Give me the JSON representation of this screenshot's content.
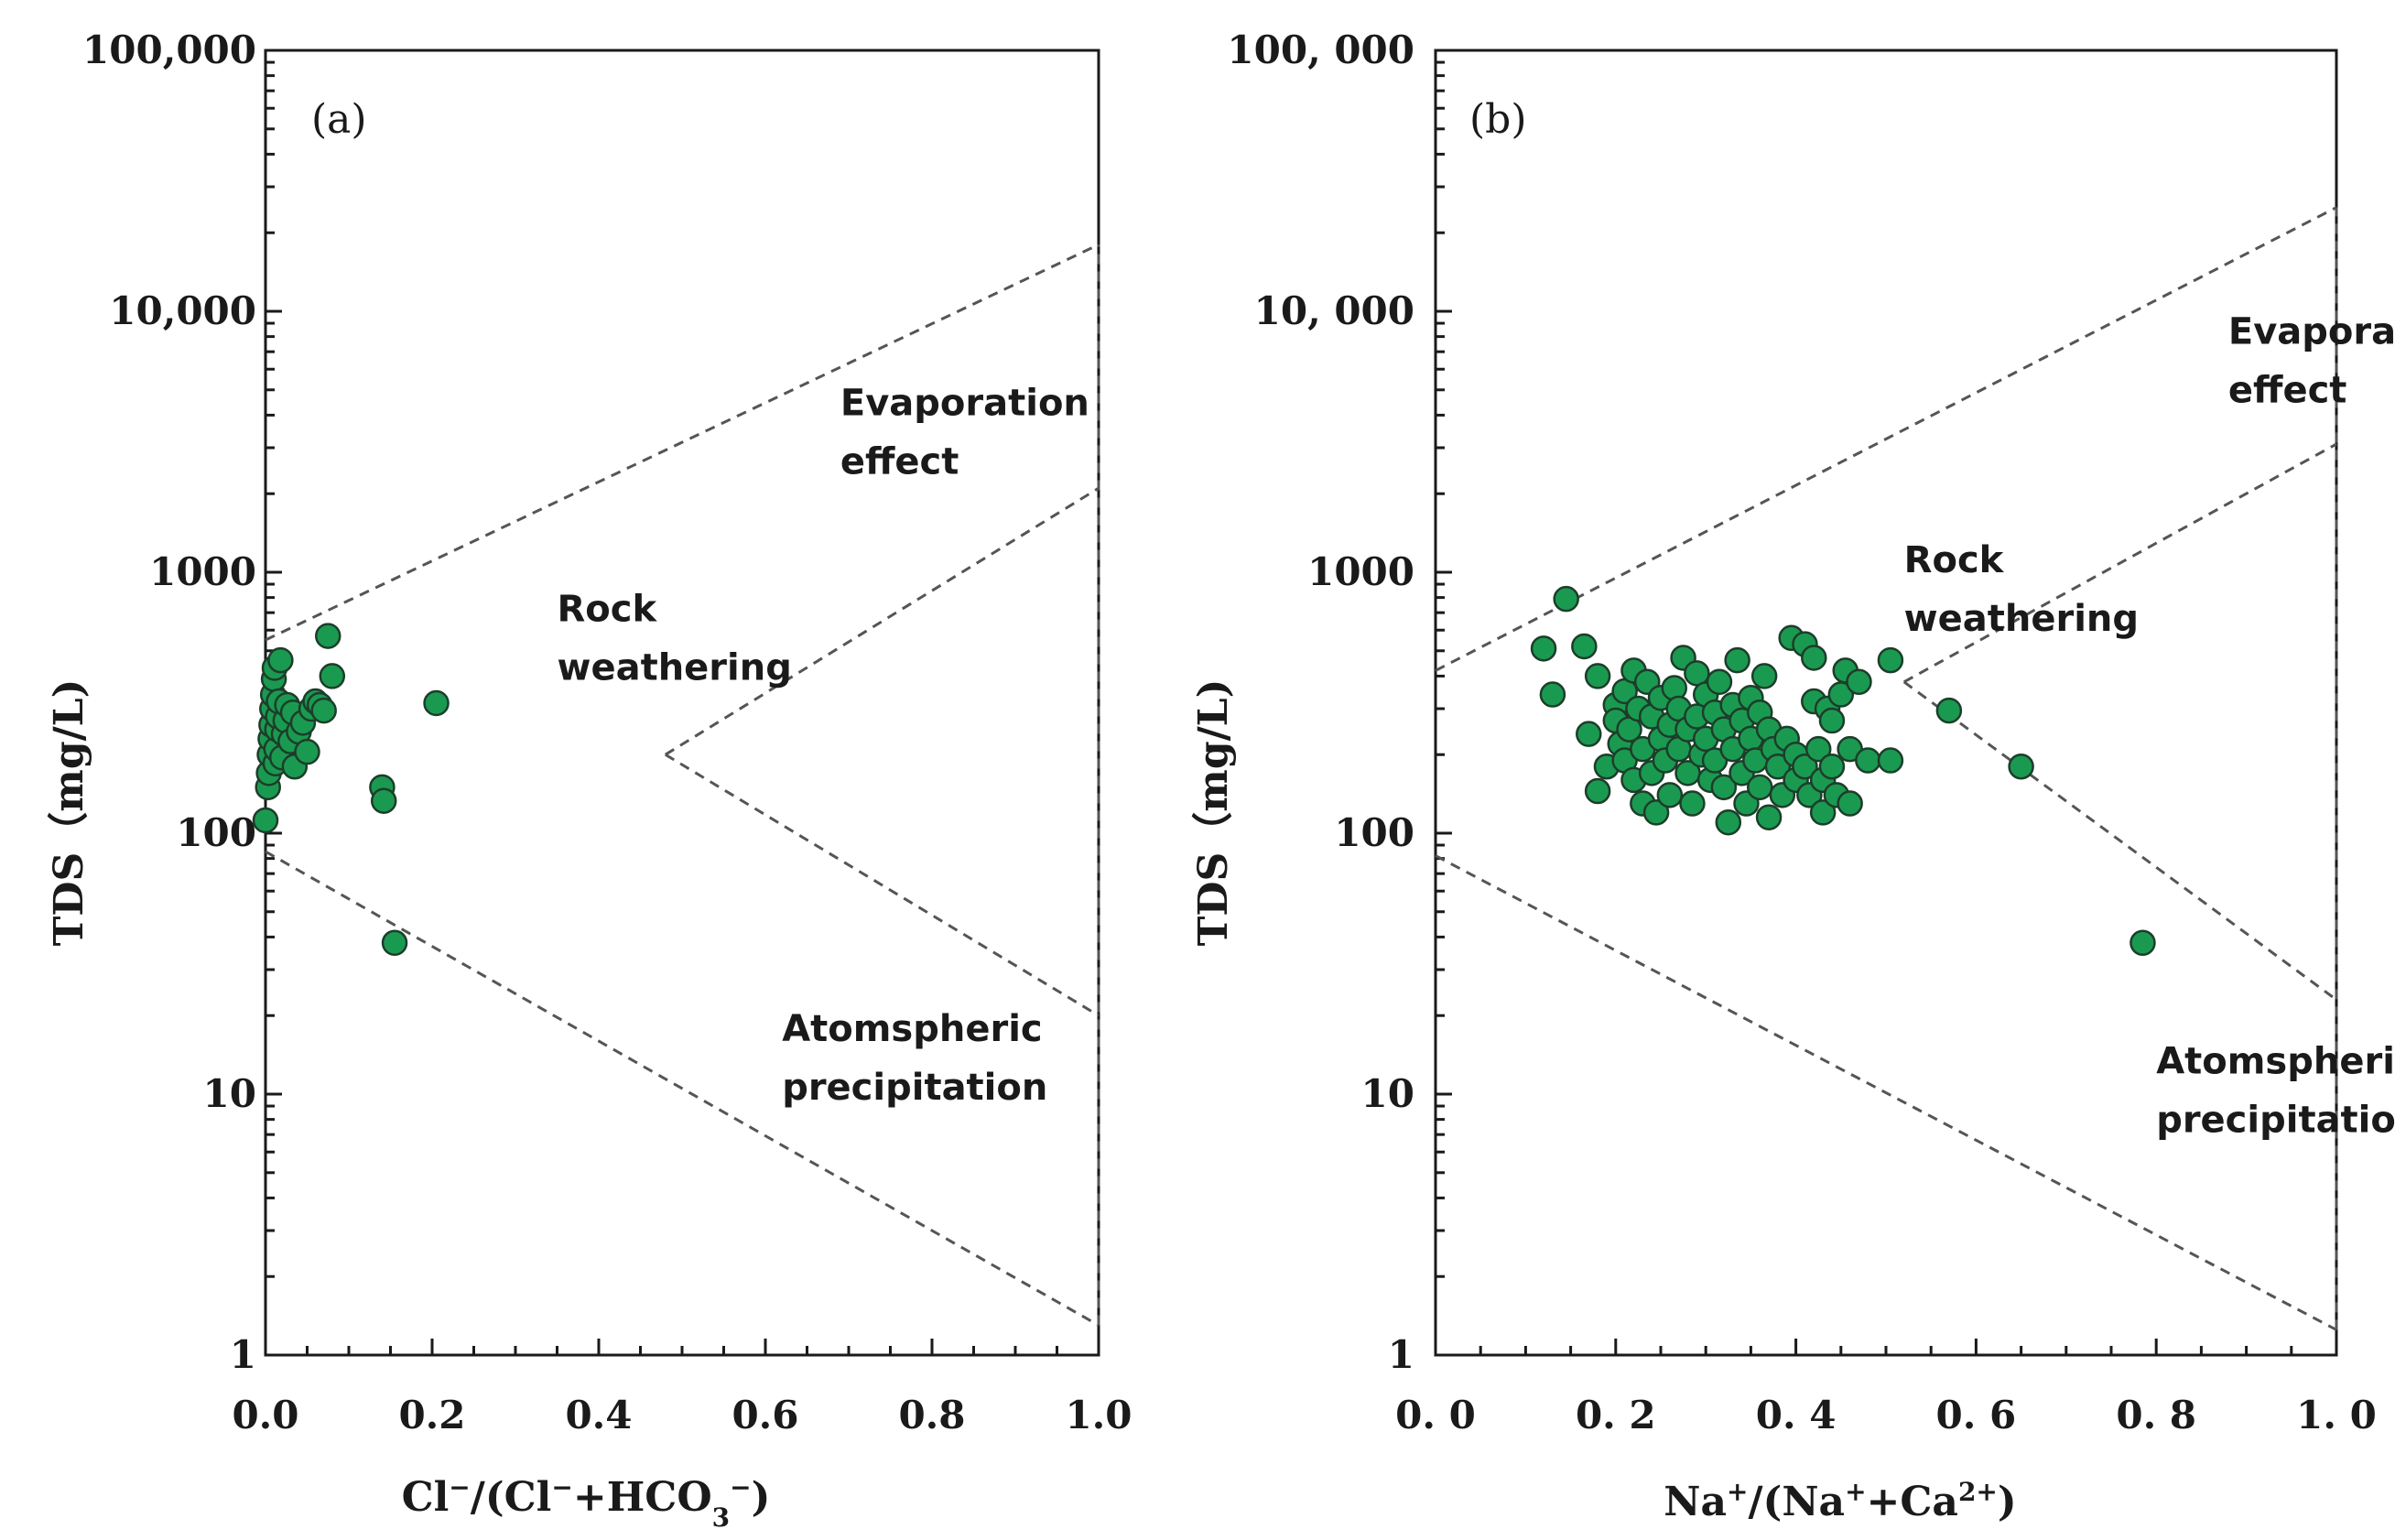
{
  "chart_data": [
    {
      "type": "scatter",
      "panel_label": "(a)",
      "ylabel": "TDS（mg/L)",
      "xlabel_parts": [
        {
          "text": "Cl",
          "sup": false
        },
        {
          "text": "−",
          "sup": true
        },
        {
          "text": "/(Cl",
          "sup": false
        },
        {
          "text": "−",
          "sup": true
        },
        {
          "text": "+HCO",
          "sup": false
        },
        {
          "text": "3",
          "sub": true
        },
        {
          "text": "−",
          "sup": true
        },
        {
          "text": ")",
          "sup": false
        }
      ],
      "xlim": [
        0,
        1
      ],
      "ylim": [
        1,
        100000
      ],
      "yscale": "log",
      "x_ticks": [
        0,
        0.2,
        0.4,
        0.6,
        0.8,
        1.0
      ],
      "x_tick_labels": [
        "0.0",
        "0.2",
        "0.4",
        "0.6",
        "0.8",
        "1.0"
      ],
      "y_ticks": [
        1,
        10,
        100,
        1000,
        10000,
        100000
      ],
      "y_tick_labels": [
        "1",
        "10",
        "100",
        "1000",
        "10,000",
        "100,000"
      ],
      "point_color": "#1a9a50",
      "boundary_lines": [
        {
          "name": "evaporation-upper",
          "points": [
            [
              0,
              550
            ],
            [
              1.0,
              18000
            ]
          ]
        },
        {
          "name": "evaporation-lower",
          "points": [
            [
              0.48,
              200
            ],
            [
              1.0,
              2100
            ]
          ]
        },
        {
          "name": "precipitation-upper",
          "points": [
            [
              0.48,
              200
            ],
            [
              1.0,
              20
            ]
          ]
        },
        {
          "name": "precipitation-lower",
          "points": [
            [
              0,
              85
            ],
            [
              1.0,
              1.3
            ]
          ]
        },
        {
          "name": "right-edge",
          "points": [
            [
              1.0,
              1.3
            ],
            [
              1.0,
              18000
            ]
          ]
        }
      ],
      "regions": [
        {
          "name": "evaporation",
          "lines": [
            "Evaporation",
            "effect"
          ],
          "x": 0.69,
          "y": 4000
        },
        {
          "name": "rock-weathering",
          "lines": [
            "Rock",
            "weathering"
          ],
          "x": 0.35,
          "y": 650
        },
        {
          "name": "atmospheric-precipitation",
          "lines": [
            "Atomspheric",
            "precipitation"
          ],
          "x": 0.62,
          "y": 16
        }
      ],
      "points": [
        {
          "x": 0.0,
          "y": 112
        },
        {
          "x": 0.003,
          "y": 150
        },
        {
          "x": 0.004,
          "y": 170
        },
        {
          "x": 0.005,
          "y": 200
        },
        {
          "x": 0.006,
          "y": 230
        },
        {
          "x": 0.007,
          "y": 260
        },
        {
          "x": 0.008,
          "y": 300
        },
        {
          "x": 0.009,
          "y": 340
        },
        {
          "x": 0.01,
          "y": 390
        },
        {
          "x": 0.011,
          "y": 430
        },
        {
          "x": 0.012,
          "y": 185
        },
        {
          "x": 0.013,
          "y": 210
        },
        {
          "x": 0.014,
          "y": 250
        },
        {
          "x": 0.015,
          "y": 280
        },
        {
          "x": 0.016,
          "y": 320
        },
        {
          "x": 0.018,
          "y": 460
        },
        {
          "x": 0.02,
          "y": 195
        },
        {
          "x": 0.022,
          "y": 240
        },
        {
          "x": 0.024,
          "y": 270
        },
        {
          "x": 0.026,
          "y": 310
        },
        {
          "x": 0.03,
          "y": 225
        },
        {
          "x": 0.033,
          "y": 290
        },
        {
          "x": 0.035,
          "y": 180
        },
        {
          "x": 0.04,
          "y": 245
        },
        {
          "x": 0.045,
          "y": 265
        },
        {
          "x": 0.05,
          "y": 205
        },
        {
          "x": 0.055,
          "y": 300
        },
        {
          "x": 0.06,
          "y": 320
        },
        {
          "x": 0.065,
          "y": 310
        },
        {
          "x": 0.07,
          "y": 295
        },
        {
          "x": 0.075,
          "y": 570
        },
        {
          "x": 0.08,
          "y": 400
        },
        {
          "x": 0.14,
          "y": 150
        },
        {
          "x": 0.142,
          "y": 133
        },
        {
          "x": 0.155,
          "y": 38
        },
        {
          "x": 0.205,
          "y": 315
        }
      ]
    },
    {
      "type": "scatter",
      "panel_label": "(b)",
      "ylabel": "TDS（mg/L)",
      "xlabel_parts": [
        {
          "text": "Na",
          "sup": false
        },
        {
          "text": "+",
          "sup": true
        },
        {
          "text": "/(Na",
          "sup": false
        },
        {
          "text": "+",
          "sup": true
        },
        {
          "text": "+Ca",
          "sup": false
        },
        {
          "text": "2+",
          "sup": true
        },
        {
          "text": ")",
          "sup": false
        }
      ],
      "xlim": [
        0,
        1
      ],
      "ylim": [
        1,
        100000
      ],
      "yscale": "log",
      "x_ticks": [
        0,
        0.2,
        0.4,
        0.6,
        0.8,
        1.0
      ],
      "x_tick_labels": [
        "0. 0",
        "0. 2",
        "0. 4",
        "0. 6",
        "0. 8",
        "1. 0"
      ],
      "y_ticks": [
        1,
        10,
        100,
        1000,
        10000,
        100000
      ],
      "y_tick_labels": [
        "1",
        "10",
        "100",
        "1000",
        "10, 000",
        "100, 000"
      ],
      "point_color": "#1a9a50",
      "boundary_lines": [
        {
          "name": "evaporation-upper",
          "points": [
            [
              0,
              420
            ],
            [
              1.0,
              25000
            ]
          ]
        },
        {
          "name": "evaporation-lower",
          "points": [
            [
              0.52,
              380
            ],
            [
              1.0,
              3100
            ]
          ]
        },
        {
          "name": "precipitation-upper",
          "points": [
            [
              0.52,
              380
            ],
            [
              1.0,
              23
            ]
          ]
        },
        {
          "name": "precipitation-lower",
          "points": [
            [
              0,
              82
            ],
            [
              1.0,
              1.25
            ]
          ]
        },
        {
          "name": "right-edge",
          "points": [
            [
              1.0,
              1.25
            ],
            [
              1.0,
              25000
            ]
          ]
        }
      ],
      "regions": [
        {
          "name": "evaporation",
          "lines": [
            "Evaporation",
            "effect"
          ],
          "x": 0.88,
          "y": 7500
        },
        {
          "name": "rock-weathering",
          "lines": [
            "Rock",
            "weathering"
          ],
          "x": 0.52,
          "y": 1000
        },
        {
          "name": "atmospheric-precipitation",
          "lines": [
            "Atomspheric",
            "precipitation"
          ],
          "x": 0.8,
          "y": 12
        }
      ],
      "points": [
        {
          "x": 0.12,
          "y": 510
        },
        {
          "x": 0.13,
          "y": 340
        },
        {
          "x": 0.145,
          "y": 790
        },
        {
          "x": 0.165,
          "y": 520
        },
        {
          "x": 0.17,
          "y": 240
        },
        {
          "x": 0.18,
          "y": 400
        },
        {
          "x": 0.18,
          "y": 145
        },
        {
          "x": 0.19,
          "y": 180
        },
        {
          "x": 0.2,
          "y": 310
        },
        {
          "x": 0.2,
          "y": 270
        },
        {
          "x": 0.205,
          "y": 220
        },
        {
          "x": 0.21,
          "y": 350
        },
        {
          "x": 0.21,
          "y": 190
        },
        {
          "x": 0.215,
          "y": 250
        },
        {
          "x": 0.22,
          "y": 420
        },
        {
          "x": 0.22,
          "y": 160
        },
        {
          "x": 0.225,
          "y": 300
        },
        {
          "x": 0.23,
          "y": 210
        },
        {
          "x": 0.23,
          "y": 130
        },
        {
          "x": 0.235,
          "y": 380
        },
        {
          "x": 0.24,
          "y": 280
        },
        {
          "x": 0.24,
          "y": 170
        },
        {
          "x": 0.245,
          "y": 120
        },
        {
          "x": 0.25,
          "y": 330
        },
        {
          "x": 0.25,
          "y": 230
        },
        {
          "x": 0.255,
          "y": 190
        },
        {
          "x": 0.26,
          "y": 260
        },
        {
          "x": 0.26,
          "y": 140
        },
        {
          "x": 0.265,
          "y": 360
        },
        {
          "x": 0.27,
          "y": 300
        },
        {
          "x": 0.27,
          "y": 210
        },
        {
          "x": 0.275,
          "y": 470
        },
        {
          "x": 0.28,
          "y": 250
        },
        {
          "x": 0.28,
          "y": 170
        },
        {
          "x": 0.285,
          "y": 130
        },
        {
          "x": 0.29,
          "y": 410
        },
        {
          "x": 0.29,
          "y": 280
        },
        {
          "x": 0.295,
          "y": 200
        },
        {
          "x": 0.3,
          "y": 340
        },
        {
          "x": 0.3,
          "y": 230
        },
        {
          "x": 0.305,
          "y": 160
        },
        {
          "x": 0.31,
          "y": 290
        },
        {
          "x": 0.31,
          "y": 190
        },
        {
          "x": 0.315,
          "y": 380
        },
        {
          "x": 0.32,
          "y": 250
        },
        {
          "x": 0.32,
          "y": 150
        },
        {
          "x": 0.325,
          "y": 110
        },
        {
          "x": 0.33,
          "y": 310
        },
        {
          "x": 0.33,
          "y": 210
        },
        {
          "x": 0.335,
          "y": 460
        },
        {
          "x": 0.34,
          "y": 270
        },
        {
          "x": 0.34,
          "y": 170
        },
        {
          "x": 0.345,
          "y": 130
        },
        {
          "x": 0.35,
          "y": 330
        },
        {
          "x": 0.35,
          "y": 230
        },
        {
          "x": 0.355,
          "y": 190
        },
        {
          "x": 0.36,
          "y": 290
        },
        {
          "x": 0.36,
          "y": 150
        },
        {
          "x": 0.365,
          "y": 400
        },
        {
          "x": 0.37,
          "y": 250
        },
        {
          "x": 0.37,
          "y": 115
        },
        {
          "x": 0.375,
          "y": 210
        },
        {
          "x": 0.38,
          "y": 180
        },
        {
          "x": 0.385,
          "y": 140
        },
        {
          "x": 0.39,
          "y": 230
        },
        {
          "x": 0.395,
          "y": 560
        },
        {
          "x": 0.4,
          "y": 200
        },
        {
          "x": 0.4,
          "y": 160
        },
        {
          "x": 0.41,
          "y": 530
        },
        {
          "x": 0.41,
          "y": 180
        },
        {
          "x": 0.415,
          "y": 140
        },
        {
          "x": 0.42,
          "y": 470
        },
        {
          "x": 0.42,
          "y": 320
        },
        {
          "x": 0.425,
          "y": 210
        },
        {
          "x": 0.43,
          "y": 160
        },
        {
          "x": 0.43,
          "y": 120
        },
        {
          "x": 0.435,
          "y": 300
        },
        {
          "x": 0.44,
          "y": 270
        },
        {
          "x": 0.44,
          "y": 180
        },
        {
          "x": 0.445,
          "y": 140
        },
        {
          "x": 0.45,
          "y": 340
        },
        {
          "x": 0.455,
          "y": 420
        },
        {
          "x": 0.46,
          "y": 210
        },
        {
          "x": 0.46,
          "y": 130
        },
        {
          "x": 0.47,
          "y": 380
        },
        {
          "x": 0.48,
          "y": 190
        },
        {
          "x": 0.505,
          "y": 460
        },
        {
          "x": 0.505,
          "y": 190
        },
        {
          "x": 0.57,
          "y": 295
        },
        {
          "x": 0.65,
          "y": 180
        },
        {
          "x": 0.785,
          "y": 38
        }
      ]
    }
  ]
}
